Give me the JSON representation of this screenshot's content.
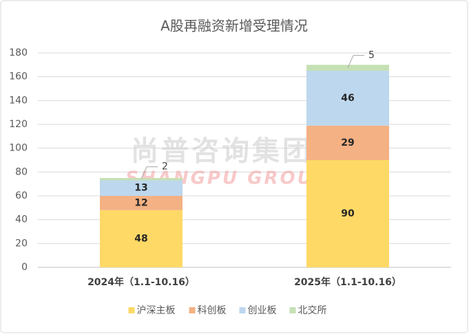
{
  "chart_data": {
    "type": "stacked_bar",
    "title": "A股再融资新增受理情况",
    "watermark": [
      "尚普咨询集团",
      "SHANGPU GROUP"
    ],
    "categories": [
      "2024年（1.1-10.16）",
      "2025年（1.1-10.16）"
    ],
    "series": [
      {
        "name": "沪深主板",
        "color": "#ffd966",
        "values": [
          48,
          90
        ]
      },
      {
        "name": "科创板",
        "color": "#f4b183",
        "values": [
          12,
          29
        ]
      },
      {
        "name": "创业板",
        "color": "#bdd7ee",
        "values": [
          13,
          46
        ]
      },
      {
        "name": "北交所",
        "color": "#c5e0b4",
        "values": [
          2,
          5
        ]
      }
    ],
    "ylim": [
      0,
      180
    ],
    "yticks": [
      0,
      20,
      40,
      60,
      80,
      100,
      120,
      140,
      160,
      180
    ],
    "grid": true,
    "legend": "bottom"
  }
}
